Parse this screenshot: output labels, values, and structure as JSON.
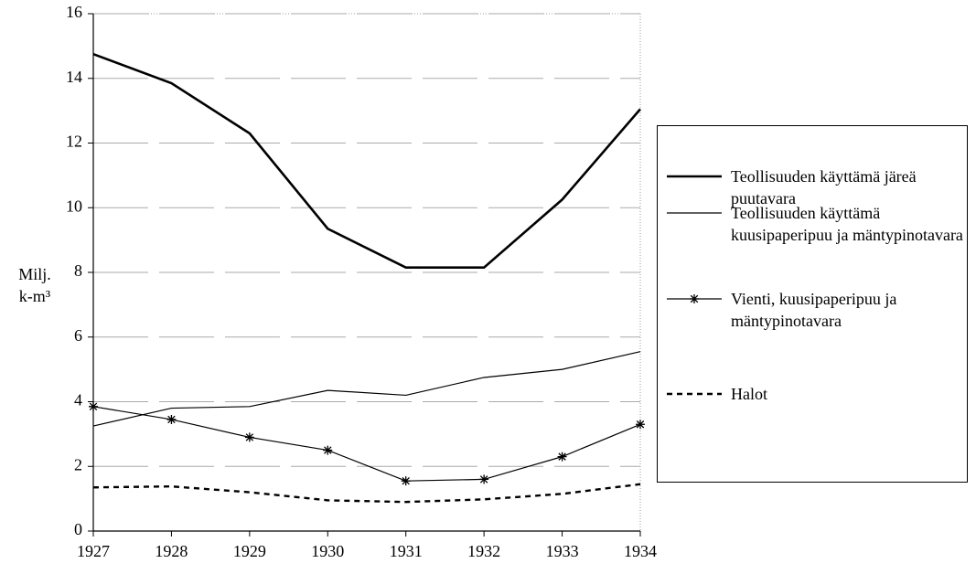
{
  "chart_data": {
    "type": "line",
    "ylabel": [
      "Milj.",
      "k-m³"
    ],
    "x": [
      1927,
      1928,
      1929,
      1930,
      1931,
      1932,
      1933,
      1934
    ],
    "xlim": [
      1927,
      1934
    ],
    "xticks": [
      1927,
      1928,
      1929,
      1930,
      1931,
      1932,
      1933,
      1934
    ],
    "ylim": [
      0,
      16
    ],
    "yticks": [
      0,
      2,
      4,
      6,
      8,
      10,
      12,
      14,
      16
    ],
    "grid": true,
    "legend": "right",
    "series": [
      {
        "name": "Teollisuuden käyttämä järeä puutavara",
        "color": "#000000",
        "line_width": 2.6,
        "values": [
          14.75,
          13.85,
          12.3,
          9.35,
          8.15,
          8.15,
          10.25,
          13.05
        ]
      },
      {
        "name": "Teollisuuden käyttämä kuusipaperipuu ja mäntypinotavara",
        "color": "#000000",
        "line_width": 1.2,
        "values": [
          3.25,
          3.8,
          3.85,
          4.35,
          4.2,
          4.75,
          5.0,
          5.55
        ]
      },
      {
        "name": "Vienti, kuusipaperipuu ja mäntypinotavara",
        "color": "#000000",
        "line_width": 1.2,
        "marker": "asterisk",
        "values": [
          3.85,
          3.45,
          2.9,
          2.5,
          1.55,
          1.6,
          2.3,
          3.3
        ]
      },
      {
        "name": "Halot",
        "color": "#000000",
        "line_width": 2.4,
        "dash": true,
        "values": [
          1.35,
          1.38,
          1.2,
          0.95,
          0.9,
          0.98,
          1.15,
          1.45
        ]
      }
    ]
  }
}
